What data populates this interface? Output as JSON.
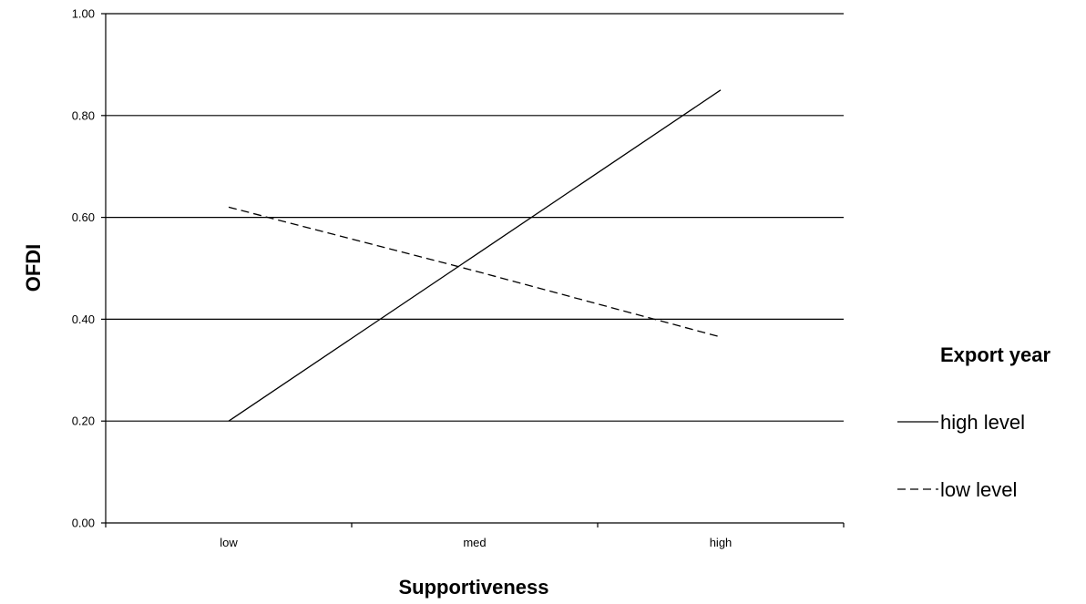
{
  "chart_data": {
    "type": "line",
    "categories": [
      "low",
      "med",
      "high"
    ],
    "series": [
      {
        "name": "high level",
        "values": [
          0.2,
          0.525,
          0.85
        ],
        "dash": "solid"
      },
      {
        "name": "low level",
        "values": [
          0.62,
          0.495,
          0.365
        ],
        "dash": "dashed"
      }
    ],
    "ylim": [
      0.0,
      1.0
    ],
    "yticks": [
      "0.00",
      "0.20",
      "0.40",
      "0.60",
      "0.80",
      "1.00"
    ],
    "xlabel": "Supportiveness",
    "ylabel": "OFDI",
    "legend": {
      "title": "Export year",
      "position": "right"
    },
    "grid": true,
    "colors": {
      "line": "#000000",
      "grid": "#000000"
    }
  }
}
